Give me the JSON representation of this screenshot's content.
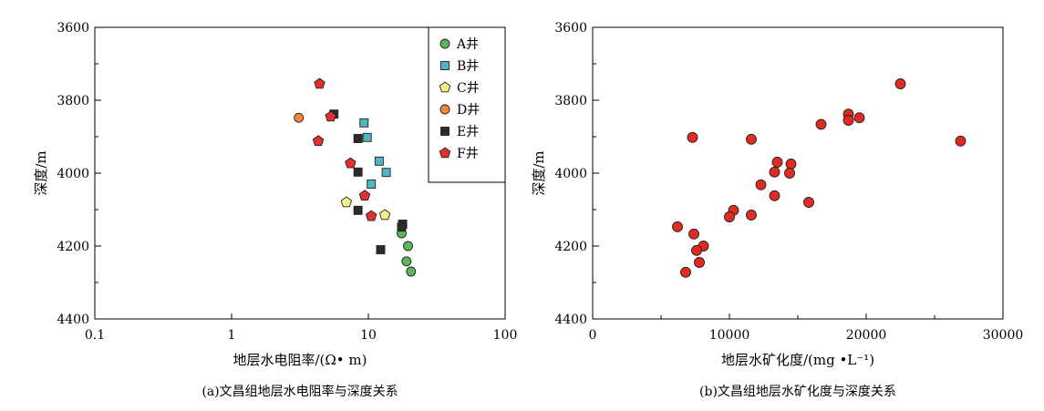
{
  "chart_data": [
    {
      "type": "scatter",
      "panel": "a",
      "x_scale": "log",
      "xlim": [
        0.1,
        100
      ],
      "ylim": [
        3600,
        4400
      ],
      "y_inverted": true,
      "xlabel": "地层水电阻率/(Ω• m)",
      "ylabel": "深度/m",
      "caption": "(a)文昌组地层水电阻率与深度关系",
      "x_ticks": [
        "0.1",
        "1",
        "10",
        "100"
      ],
      "x_tick_values": [
        0.1,
        1,
        10,
        100
      ],
      "y_ticks": [
        "3600",
        "3800",
        "4000",
        "4200",
        "4400"
      ],
      "y_tick_values": [
        3600,
        3800,
        4000,
        4200,
        4400
      ],
      "legend_position": "top-right",
      "series": [
        {
          "name": "A井",
          "marker": "circle",
          "color": "#5cb85c",
          "points": [
            [
              17.5,
              4165
            ],
            [
              19.5,
              4200
            ],
            [
              19,
              4242
            ],
            [
              20.5,
              4270
            ]
          ]
        },
        {
          "name": "B井",
          "marker": "square",
          "color": "#4fb7c0",
          "points": [
            [
              9.3,
              3862
            ],
            [
              9.8,
              3902
            ],
            [
              12,
              3967
            ],
            [
              13.5,
              3998
            ],
            [
              10.5,
              4030
            ]
          ]
        },
        {
          "name": "C井",
          "marker": "pentagon",
          "color": "#f2f08a",
          "points": [
            [
              6.9,
              4080
            ],
            [
              13.2,
              4115
            ]
          ]
        },
        {
          "name": "D井",
          "marker": "circle",
          "color": "#f0883a",
          "points": [
            [
              3.1,
              3848
            ]
          ]
        },
        {
          "name": "E井",
          "marker": "square",
          "color": "#2a2a2a",
          "points": [
            [
              5.6,
              3838
            ],
            [
              8.4,
              3905
            ],
            [
              8.4,
              3997
            ],
            [
              8.4,
              4102
            ],
            [
              17.8,
              4140
            ],
            [
              17.5,
              4148
            ],
            [
              12.3,
              4210
            ]
          ]
        },
        {
          "name": "F井",
          "marker": "pentagon",
          "color": "#e03030",
          "points": [
            [
              4.4,
              3755
            ],
            [
              5.3,
              3845
            ],
            [
              4.3,
              3912
            ],
            [
              7.4,
              3973
            ],
            [
              9.4,
              4062
            ],
            [
              10.5,
              4118
            ]
          ]
        }
      ]
    },
    {
      "type": "scatter",
      "panel": "b",
      "xlim": [
        0,
        30000
      ],
      "ylim": [
        3600,
        4400
      ],
      "y_inverted": true,
      "xlabel": "地层水矿化度/(mg •L⁻¹)",
      "ylabel": "深度/m",
      "caption": "(b)文昌组地层水矿化度与深度关系",
      "x_ticks": [
        "0",
        "10000",
        "20000",
        "30000"
      ],
      "x_tick_values": [
        0,
        10000,
        20000,
        30000
      ],
      "y_ticks": [
        "3600",
        "3800",
        "4000",
        "4200",
        "4400"
      ],
      "y_tick_values": [
        3600,
        3800,
        4000,
        4200,
        4400
      ],
      "color": "#e02b20",
      "points": [
        [
          22500,
          3755
        ],
        [
          18700,
          3838
        ],
        [
          19500,
          3848
        ],
        [
          18700,
          3855
        ],
        [
          16700,
          3866
        ],
        [
          7300,
          3902
        ],
        [
          11600,
          3907
        ],
        [
          26900,
          3912
        ],
        [
          13500,
          3970
        ],
        [
          14500,
          3975
        ],
        [
          13300,
          3997
        ],
        [
          14400,
          4000
        ],
        [
          12300,
          4032
        ],
        [
          13300,
          4062
        ],
        [
          15800,
          4080
        ],
        [
          10300,
          4102
        ],
        [
          11600,
          4115
        ],
        [
          10000,
          4120
        ],
        [
          6200,
          4147
        ],
        [
          7400,
          4167
        ],
        [
          8100,
          4200
        ],
        [
          7600,
          4212
        ],
        [
          7800,
          4245
        ],
        [
          6800,
          4272
        ]
      ]
    }
  ],
  "legend_title_hidden": ""
}
